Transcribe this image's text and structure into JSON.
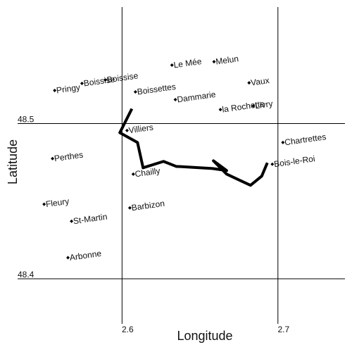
{
  "chart_data": {
    "type": "scatter",
    "xlabel": "Longitude",
    "ylabel": "Latitude",
    "xlim": [
      2.533,
      2.743
    ],
    "ylim": [
      48.371,
      48.575
    ],
    "xticks": [
      2.6,
      2.7
    ],
    "yticks": [
      48.5,
      48.4
    ],
    "grid": true,
    "color": "#000000",
    "labels": [
      "Pringy",
      "Boissise",
      "Boissise",
      "Le Mée",
      "Melun",
      "Boissettes",
      "Dammarie",
      "Vaux",
      "la Rochette",
      "Livry",
      "Villiers",
      "Chartrettes",
      "Perthes",
      "Chailly",
      "Bois-le-Roi",
      "Fleury",
      "Barbizon",
      "St-Martin",
      "Arbonne"
    ],
    "x": [
      2.5568,
      2.5743,
      2.5892,
      2.632,
      2.659,
      2.6086,
      2.6342,
      2.6815,
      2.6631,
      2.6842,
      2.6032,
      2.7032,
      2.5554,
      2.6072,
      2.6964,
      2.55,
      2.605,
      2.5676,
      2.5653
    ],
    "y": [
      48.5213,
      48.5258,
      48.5281,
      48.5376,
      48.5398,
      48.5204,
      48.5154,
      48.5262,
      48.509,
      48.5113,
      48.4955,
      48.4878,
      48.4774,
      48.4674,
      48.4738,
      48.448,
      48.4457,
      48.4371,
      48.4136
    ],
    "track": {
      "color": "#000000",
      "x": [
        2.6063,
        2.5986,
        2.6099,
        2.6135,
        2.6266,
        2.6347,
        2.6581,
        2.6671,
        2.6586,
        2.6671,
        2.6824,
        2.6896,
        2.6932
      ],
      "y": [
        48.5095,
        48.4941,
        48.4878,
        48.4715,
        48.4756,
        48.4724,
        48.471,
        48.4697,
        48.476,
        48.4674,
        48.4602,
        48.4661,
        48.4747
      ]
    }
  }
}
